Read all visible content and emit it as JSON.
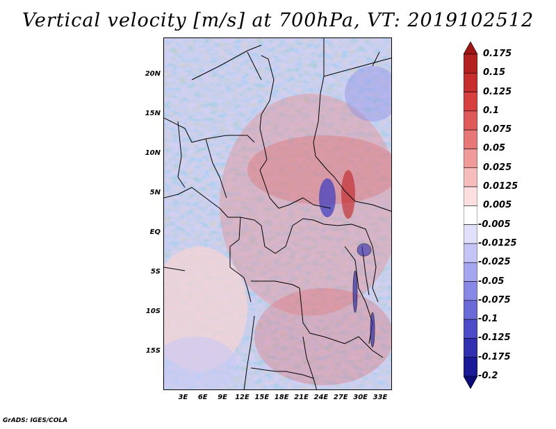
{
  "title": "Vertical velocity [m/s] at 700hPa, VT: 2019102512",
  "footer": "GrADS: IGES/COLA",
  "map": {
    "lat_labels": [
      "20N",
      "15N",
      "10N",
      "5N",
      "EQ",
      "5S",
      "10S",
      "15S"
    ],
    "lat_values": [
      20,
      15,
      10,
      5,
      0,
      -5,
      -10,
      -15
    ],
    "lon_labels": [
      "3E",
      "6E",
      "9E",
      "12E",
      "15E",
      "18E",
      "21E",
      "24E",
      "27E",
      "30E",
      "33E"
    ],
    "lon_values": [
      3,
      6,
      9,
      12,
      15,
      18,
      21,
      24,
      27,
      30,
      33
    ],
    "lat_range": [
      -19.8,
      24.7
    ],
    "lon_range": [
      0,
      34.8
    ]
  },
  "colorbar": {
    "labels": [
      "0.175",
      "0.15",
      "0.125",
      "0.1",
      "0.075",
      "0.05",
      "0.025",
      "0.0125",
      "0.005",
      "-0.005",
      "-0.0125",
      "-0.025",
      "-0.05",
      "-0.075",
      "-0.1",
      "-0.125",
      "-0.175",
      "-0.2"
    ],
    "colors": [
      "#a01414",
      "#b42020",
      "#c82d2d",
      "#d84040",
      "#e05a5a",
      "#e87878",
      "#f09a9a",
      "#f7bcbc",
      "#fce0e0",
      "#ffffff",
      "#e0e0fc",
      "#c4c4f7",
      "#a6a6f0",
      "#8888e6",
      "#6a6ad8",
      "#4c4cc8",
      "#3030b0",
      "#1a1a98",
      "#0c0c78"
    ]
  },
  "colors": {
    "positive": "#d84040",
    "negative": "#6a6ad8",
    "neutral": "#ffffff",
    "borders": "#000000"
  }
}
